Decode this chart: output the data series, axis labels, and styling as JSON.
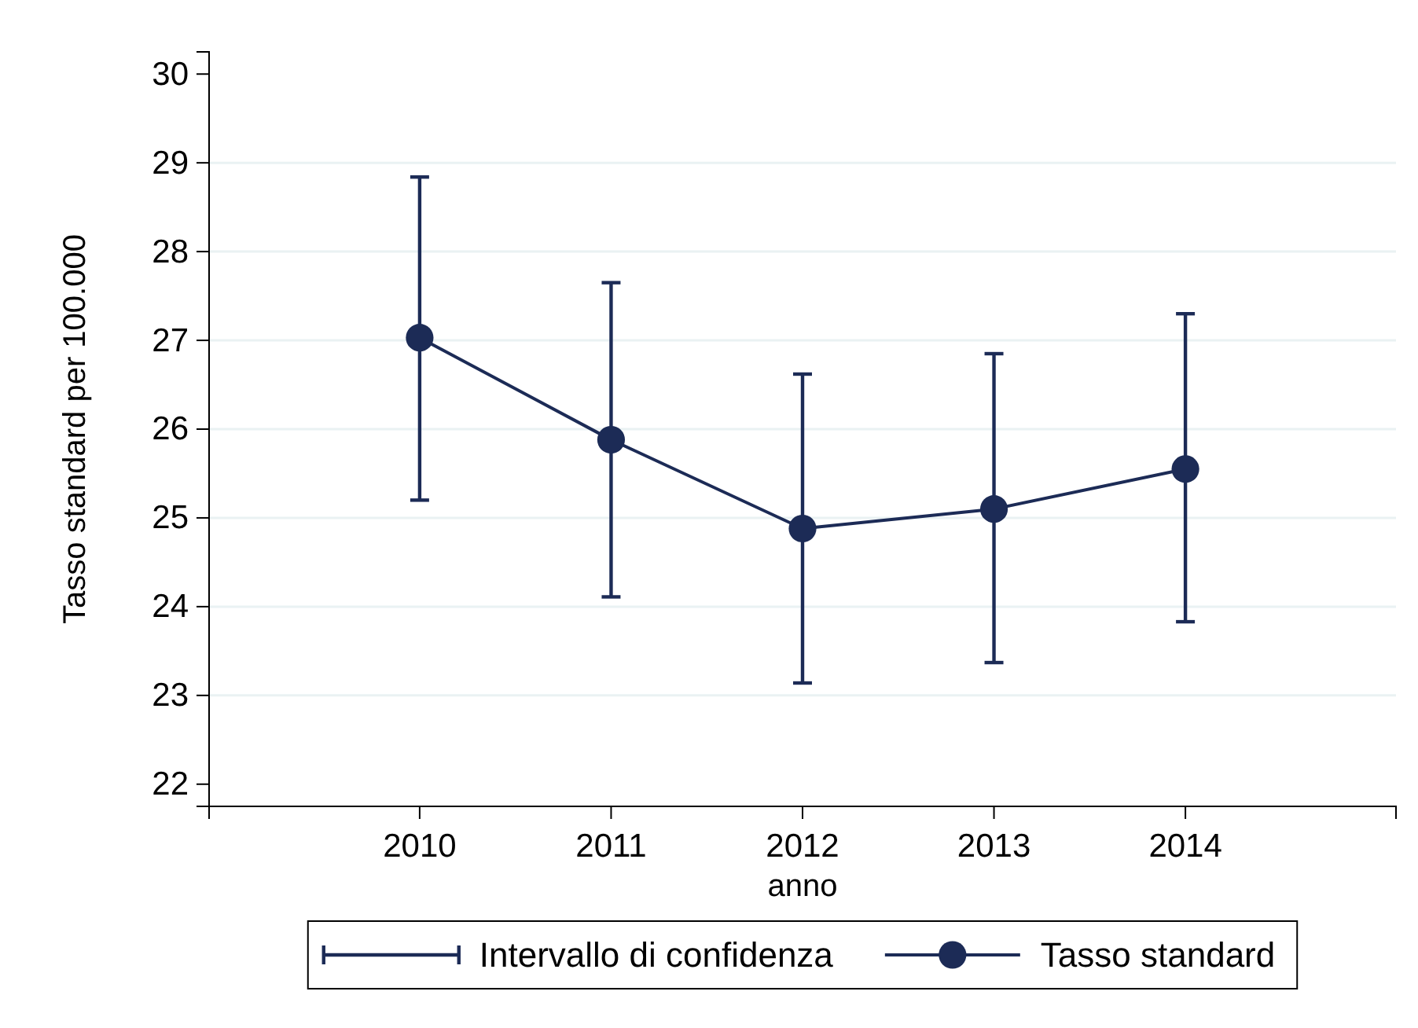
{
  "chart_data": {
    "type": "line",
    "xlabel": "anno",
    "ylabel": "Tasso standard per 100.000",
    "x": [
      2010,
      2011,
      2012,
      2013,
      2014
    ],
    "xlim": [
      2008.9,
      2015.1
    ],
    "xticks": [
      2010,
      2011,
      2012,
      2013,
      2014
    ],
    "ylim": [
      21.75,
      30.25
    ],
    "yticks": [
      22,
      23,
      24,
      25,
      26,
      27,
      28,
      29,
      30
    ],
    "grid": "y",
    "legend": "bottom",
    "marker": "circle",
    "annotations": [
      "Intervallo di confidenza"
    ],
    "series": [
      {
        "name": "Tasso standard",
        "color": "#1c2b56",
        "values": [
          27.03,
          25.88,
          24.88,
          25.1,
          25.55
        ],
        "errors": [
          [
            25.2,
            28.84
          ],
          [
            24.11,
            27.65
          ],
          [
            23.14,
            26.62
          ],
          [
            23.37,
            26.85
          ],
          [
            23.83,
            27.3
          ]
        ]
      }
    ]
  }
}
